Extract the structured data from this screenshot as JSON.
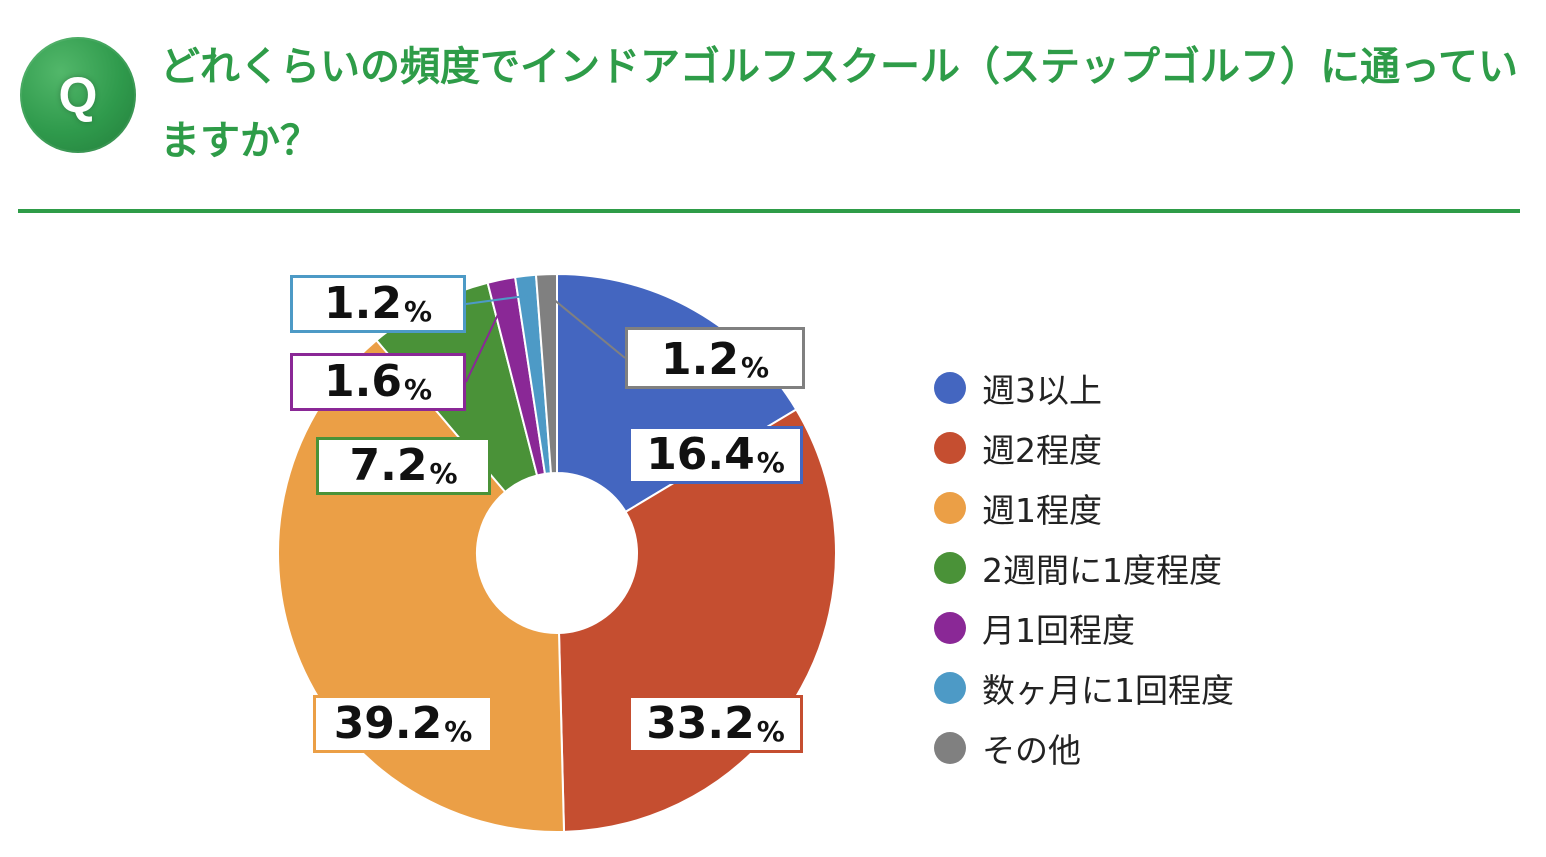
{
  "header": {
    "badge_letter": "Q",
    "question": "どれくらいの頻度でインドアゴルフスクール（ステップゴルフ）に通っていますか？"
  },
  "chart_data": {
    "type": "pie",
    "donut": true,
    "start": "12 o'clock, clockwise",
    "categories": [
      "週3以上",
      "週2程度",
      "週1程度",
      "2週間に1度程度",
      "月1回程度",
      "数ヶ月に1回程度",
      "その他"
    ],
    "values": [
      16.4,
      33.2,
      39.2,
      7.2,
      1.6,
      1.2,
      1.2
    ],
    "unit": "%",
    "colors": [
      "#4466c0",
      "#c54e30",
      "#eb9f46",
      "#4a9238",
      "#8a2896",
      "#4d9ac6",
      "#808080"
    ]
  },
  "labels": [
    {
      "num": "16.4",
      "unit": "%"
    },
    {
      "num": "33.2",
      "unit": "%"
    },
    {
      "num": "39.2",
      "unit": "%"
    },
    {
      "num": "7.2",
      "unit": "%"
    },
    {
      "num": "1.6",
      "unit": "%"
    },
    {
      "num": "1.2",
      "unit": "%"
    },
    {
      "num": "1.2",
      "unit": "%"
    }
  ]
}
